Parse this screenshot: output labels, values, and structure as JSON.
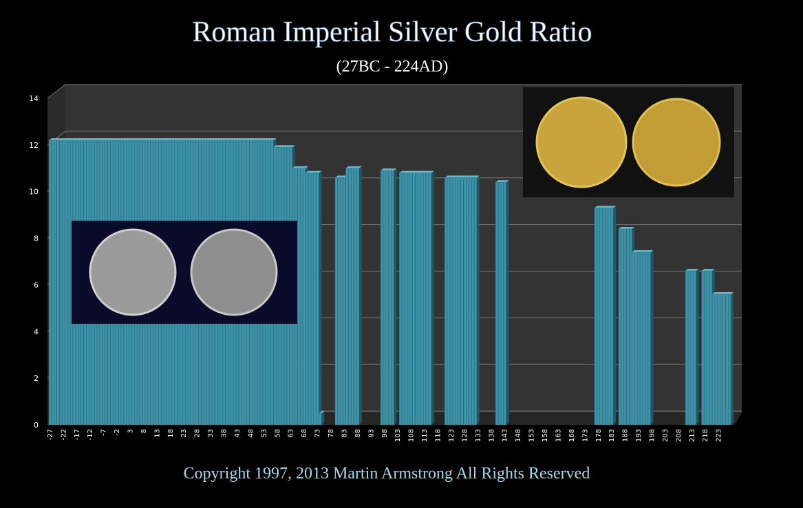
{
  "chart_data": {
    "type": "bar",
    "title": "Roman Imperial Silver Gold Ratio",
    "subtitle": "(27BC - 224AD)",
    "footer": "Copyright 1997, 2013 Martin Armstrong All Rights Reserved",
    "color": "#3f93a8",
    "grid": true,
    "xlim": [
      -28,
      229
    ],
    "ylim": [
      0,
      14
    ],
    "yticks": [
      0,
      2,
      4,
      6,
      8,
      10,
      12,
      14
    ],
    "xticks": [
      -27,
      -22,
      -17,
      -12,
      -7,
      -2,
      3,
      8,
      13,
      18,
      23,
      28,
      33,
      38,
      43,
      48,
      53,
      58,
      63,
      68,
      73,
      78,
      83,
      88,
      93,
      98,
      103,
      108,
      113,
      118,
      123,
      128,
      133,
      138,
      143,
      148,
      153,
      158,
      163,
      168,
      173,
      178,
      183,
      188,
      193,
      198,
      203,
      208,
      213,
      218,
      223
    ],
    "x": [
      -27,
      -26,
      -25,
      -24,
      -23,
      -22,
      -21,
      -20,
      -19,
      -18,
      -17,
      -16,
      -15,
      -14,
      -13,
      -12,
      -11,
      -10,
      -9,
      -8,
      -7,
      -6,
      -5,
      -4,
      -3,
      -2,
      -1,
      0,
      1,
      2,
      3,
      4,
      5,
      6,
      7,
      8,
      9,
      10,
      11,
      12,
      13,
      14,
      15,
      16,
      17,
      18,
      19,
      20,
      21,
      22,
      23,
      24,
      25,
      26,
      27,
      28,
      29,
      30,
      31,
      32,
      33,
      34,
      35,
      36,
      37,
      38,
      39,
      40,
      41,
      42,
      43,
      44,
      45,
      46,
      47,
      48,
      49,
      50,
      51,
      52,
      53,
      54,
      55,
      56,
      57,
      58,
      59,
      60,
      61,
      62,
      63,
      64,
      65,
      66,
      67,
      68,
      69,
      70,
      71,
      72,
      73,
      74,
      80,
      81,
      82,
      83,
      84,
      85,
      86,
      87,
      88,
      97,
      98,
      99,
      100,
      101,
      104,
      105,
      106,
      107,
      108,
      109,
      110,
      111,
      112,
      113,
      114,
      115,
      121,
      122,
      123,
      124,
      125,
      126,
      127,
      128,
      129,
      130,
      131,
      132,
      140,
      141,
      142,
      143,
      177,
      178,
      179,
      180,
      181,
      182,
      183,
      186,
      187,
      188,
      189,
      190,
      191,
      192,
      193,
      194,
      195,
      196,
      197,
      211,
      212,
      213,
      214,
      217,
      218,
      219,
      220,
      221,
      222,
      223,
      224,
      225,
      226,
      227
    ],
    "values": [
      12.2,
      12.2,
      12.2,
      12.2,
      12.2,
      12.2,
      12.2,
      12.2,
      12.2,
      12.2,
      12.2,
      12.2,
      12.2,
      12.2,
      12.2,
      12.2,
      12.2,
      12.2,
      12.2,
      12.2,
      12.2,
      12.2,
      12.2,
      12.2,
      12.2,
      12.2,
      12.2,
      12.2,
      12.2,
      12.2,
      12.2,
      12.2,
      12.2,
      12.2,
      12.2,
      12.2,
      12.2,
      12.2,
      12.2,
      12.2,
      12.2,
      12.2,
      12.2,
      12.2,
      12.2,
      12.2,
      12.2,
      12.2,
      12.2,
      12.2,
      12.2,
      12.2,
      12.2,
      12.2,
      12.2,
      12.2,
      12.2,
      12.2,
      12.2,
      12.2,
      12.2,
      12.2,
      12.2,
      12.2,
      12.2,
      12.2,
      12.2,
      12.2,
      12.2,
      12.2,
      12.2,
      12.2,
      12.2,
      12.2,
      12.2,
      12.2,
      12.2,
      12.2,
      12.2,
      12.2,
      12.2,
      12.2,
      12.2,
      12.2,
      11.9,
      11.9,
      11.9,
      11.9,
      11.9,
      11.9,
      11.9,
      11,
      11,
      11,
      11,
      11,
      10.8,
      10.8,
      10.8,
      10.8,
      10.8,
      0.5,
      10.6,
      10.6,
      10.6,
      10.6,
      11,
      11,
      11,
      11,
      11,
      10.9,
      10.9,
      10.9,
      10.9,
      10.9,
      10.8,
      10.8,
      10.8,
      10.8,
      10.8,
      10.8,
      10.8,
      10.8,
      10.8,
      10.8,
      10.8,
      10.8,
      10.6,
      10.6,
      10.6,
      10.6,
      10.6,
      10.6,
      10.6,
      10.6,
      10.6,
      10.6,
      10.6,
      10.6,
      10.4,
      10.4,
      10.4,
      10.4,
      9.3,
      9.3,
      9.3,
      9.3,
      9.3,
      9.3,
      9.3,
      8.4,
      8.4,
      8.4,
      8.4,
      8.4,
      7.4,
      7.4,
      7.4,
      7.4,
      7.4,
      7.4,
      7.4,
      6.6,
      6.6,
      6.6,
      6.6,
      6.6,
      6.6,
      6.6,
      6.6,
      5.6,
      5.6,
      5.6,
      5.6,
      5.6,
      5.6,
      5.6
    ]
  }
}
